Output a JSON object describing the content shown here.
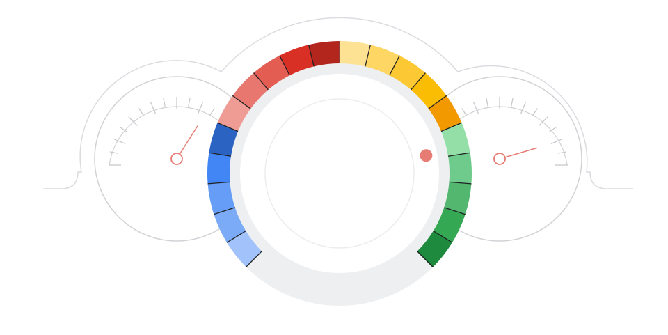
{
  "dial": {
    "segment_colors": [
      "#a1c2fa",
      "#7baaf7",
      "#669df6",
      "#4285f4",
      "#2b63c2",
      "#ee9c94",
      "#e8776f",
      "#e35d52",
      "#d93025",
      "#b3261e",
      "#fde293",
      "#fdd663",
      "#fcc934",
      "#fbbc04",
      "#f29900",
      "#94dfa8",
      "#6fcb8c",
      "#53b76f",
      "#34a853",
      "#1e8a3e"
    ],
    "track_color": "#eeeff1",
    "indicator_color": "#e67c73",
    "indicator_value": 0.79
  },
  "left_gauge": {
    "needle_value": 0.68,
    "color": "#e67c73"
  },
  "right_gauge": {
    "needle_value": 0.91,
    "color": "#e67c73"
  },
  "outline_color": "#dadce0"
}
